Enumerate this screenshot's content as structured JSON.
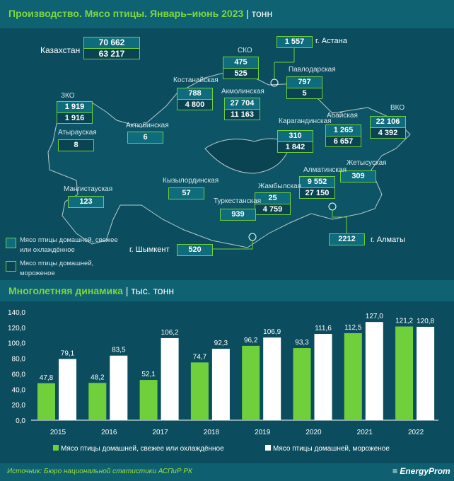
{
  "header": {
    "title": "Производство. Мясо птицы. Январь–июнь 2023",
    "unit": "тонн"
  },
  "map": {
    "total": {
      "label": "Казахстан",
      "fresh": "70 662",
      "frozen": "63 217"
    },
    "regions": [
      {
        "id": "sko",
        "label": "СКО",
        "fresh": "475",
        "frozen": "525"
      },
      {
        "id": "astana",
        "label": "г. Астана",
        "fresh": "1 557"
      },
      {
        "id": "pavlodar",
        "label": "Павлодарская",
        "fresh": "797",
        "frozen": "5"
      },
      {
        "id": "kostanay",
        "label": "Костанайская",
        "fresh": "788",
        "frozen": "4 800"
      },
      {
        "id": "akmola",
        "label": "Акмолинская",
        "fresh": "27 704",
        "frozen": "11 163"
      },
      {
        "id": "zko",
        "label": "ЗКО",
        "fresh": "1 919",
        "frozen": "1 916"
      },
      {
        "id": "vko",
        "label": "ВКО",
        "fresh": "22 106",
        "frozen": "4 392"
      },
      {
        "id": "abay",
        "label": "Абайская",
        "fresh": "1 265",
        "frozen": "6 657"
      },
      {
        "id": "karaganda",
        "label": "Карагандинская",
        "fresh": "310",
        "frozen": "1 842"
      },
      {
        "id": "aktobe",
        "label": "Актюбинская",
        "fresh": "6"
      },
      {
        "id": "atyrau",
        "label": "Атырауская",
        "frozen": "8"
      },
      {
        "id": "zhetysu",
        "label": "Жетысуская",
        "fresh": "309"
      },
      {
        "id": "almaty_obl",
        "label": "Алматинская",
        "fresh": "9 552",
        "frozen": "27 150"
      },
      {
        "id": "kyzylorda",
        "label": "Кызылординская",
        "fresh": "57"
      },
      {
        "id": "zhambyl",
        "label": "Жамбылская",
        "fresh": "25",
        "frozen": "4 759"
      },
      {
        "id": "mangistau",
        "label": "Мангистауская",
        "fresh": "123"
      },
      {
        "id": "turkestan",
        "label": "Туркестанская",
        "fresh": "939"
      },
      {
        "id": "shymkent",
        "label": "г. Шымкент",
        "fresh": "520"
      },
      {
        "id": "almaty",
        "label": "г. Алматы",
        "fresh": "2212"
      }
    ],
    "legend": {
      "fresh": "Мясо птицы домашней, свежее или охлаждённое",
      "frozen": "Мясо птицы домашней, мороженое"
    }
  },
  "colors": {
    "green": "#6fd03c",
    "white": "#ffffff",
    "bg": "#0b4d5e"
  },
  "chart_data": {
    "type": "bar",
    "title": "Многолетняя динамика",
    "unit": "тыс. тонн",
    "categories": [
      "2015",
      "2016",
      "2017",
      "2018",
      "2019",
      "2020",
      "2021",
      "2022"
    ],
    "series": [
      {
        "name": "Мясо птицы домашней, свежее или охлаждённое",
        "color": "#6fd03c",
        "values": [
          47.8,
          48.2,
          52.1,
          74.7,
          96.2,
          93.3,
          112.5,
          121.2
        ],
        "labels": [
          "47,8",
          "48,2",
          "52,1",
          "74,7",
          "96,2",
          "93,3",
          "112,5",
          "121,2"
        ]
      },
      {
        "name": "Мясо птицы домашней, мороженое",
        "color": "#ffffff",
        "values": [
          79.1,
          83.5,
          106.2,
          92.3,
          106.9,
          111.6,
          127.0,
          120.8
        ],
        "labels": [
          "79,1",
          "83,5",
          "106,2",
          "92,3",
          "106,9",
          "111,6",
          "127,0",
          "120,8"
        ]
      }
    ],
    "ylim": [
      0,
      140
    ],
    "yticks": [
      "0,0",
      "20,0",
      "40,0",
      "60,0",
      "80,0",
      "100,0",
      "120,0",
      "140,0"
    ],
    "legend_position": "bottom"
  },
  "footer": {
    "source": "Источник: Бюро национальной статистики АСПиР РК",
    "brand": "EnergyProm"
  }
}
